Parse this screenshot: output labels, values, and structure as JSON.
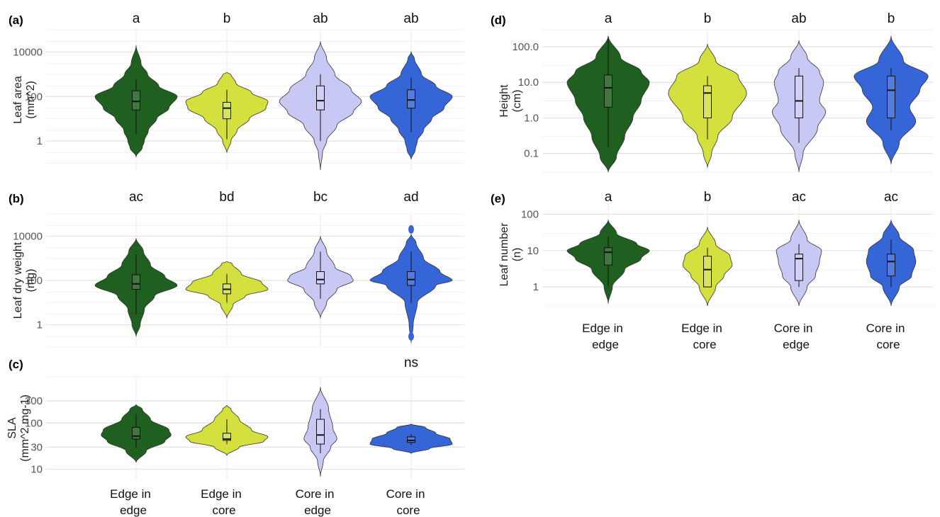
{
  "colors": {
    "Edge in edge": "#1f5f1f",
    "Edge in core": "#d4e03e",
    "Core in edge": "#c8c8f4",
    "Core in core": "#3565d6"
  },
  "chart_data": [
    {
      "panel": "(a)",
      "type": "violin",
      "scale": "log",
      "ylim": [
        0.05,
        100000
      ],
      "ylabel": [
        "Leaf area",
        "(mm^2)"
      ],
      "yticks": [
        1,
        100,
        10000
      ],
      "yticklabels": [
        "1",
        "100",
        "10000"
      ],
      "categories": [
        "Edge in edge",
        "Edge in core",
        "Core in edge",
        "Core in core"
      ],
      "xticklabels": [],
      "sig": [
        "a",
        "b",
        "ab",
        "ab"
      ],
      "groups": [
        {
          "min": 0.3,
          "q1": 25,
          "median": 60,
          "q3": 180,
          "max": 600,
          "whisker_lo": 2,
          "width": [
            [
              0.2,
              0
            ],
            [
              0.5,
              0.15
            ],
            [
              1,
              0.2
            ],
            [
              3,
              0.3
            ],
            [
              10,
              0.5
            ],
            [
              30,
              0.8
            ],
            [
              100,
              1
            ],
            [
              300,
              0.55
            ],
            [
              1000,
              0.28
            ],
            [
              3000,
              0.12
            ],
            [
              20000,
              0
            ]
          ]
        },
        {
          "min": 0.3,
          "q1": 10,
          "median": 30,
          "q3": 55,
          "max": 200,
          "whisker_lo": 1.2,
          "width": [
            [
              0.3,
              0
            ],
            [
              1,
              0.1
            ],
            [
              3,
              0.25
            ],
            [
              10,
              0.55
            ],
            [
              30,
              0.95
            ],
            [
              60,
              1
            ],
            [
              150,
              0.6
            ],
            [
              400,
              0.22
            ],
            [
              1000,
              0.1
            ],
            [
              1200,
              0
            ]
          ]
        },
        {
          "min": 0.05,
          "q1": 25,
          "median": 65,
          "q3": 300,
          "max": 1000,
          "whisker_lo": 1,
          "width": [
            [
              0.05,
              0
            ],
            [
              0.3,
              0.05
            ],
            [
              1,
              0.15
            ],
            [
              5,
              0.4
            ],
            [
              20,
              0.8
            ],
            [
              60,
              1
            ],
            [
              200,
              0.75
            ],
            [
              1000,
              0.35
            ],
            [
              5000,
              0.15
            ],
            [
              30000,
              0
            ]
          ]
        },
        {
          "min": 0.2,
          "q1": 30,
          "median": 70,
          "q3": 200,
          "max": 700,
          "whisker_lo": 2.5,
          "width": [
            [
              0.15,
              0
            ],
            [
              0.4,
              0.1
            ],
            [
              1,
              0.15
            ],
            [
              3,
              0.3
            ],
            [
              10,
              0.5
            ],
            [
              30,
              0.8
            ],
            [
              100,
              1
            ],
            [
              300,
              0.6
            ],
            [
              1000,
              0.25
            ],
            [
              5000,
              0.08
            ],
            [
              10000,
              0
            ]
          ]
        }
      ],
      "extra_points": []
    },
    {
      "panel": "(b)",
      "type": "violin",
      "scale": "log",
      "ylim": [
        0.1,
        100000
      ],
      "ylabel": [
        "Leaf dry weight",
        "(mg)"
      ],
      "yticks": [
        1,
        100,
        10000
      ],
      "yticklabels": [
        "1",
        "100",
        "10000"
      ],
      "categories": [
        "Edge in edge",
        "Edge in core",
        "Core in edge",
        "Core in core"
      ],
      "xticklabels": [],
      "sig": [
        "ac",
        "bd",
        "bc",
        "ad"
      ],
      "groups": [
        {
          "min": 0.3,
          "q1": 40,
          "median": 70,
          "q3": 180,
          "max": 1500,
          "whisker_lo": 3,
          "width": [
            [
              0.3,
              0
            ],
            [
              1,
              0.1
            ],
            [
              5,
              0.2
            ],
            [
              20,
              0.45
            ],
            [
              60,
              1
            ],
            [
              150,
              0.7
            ],
            [
              500,
              0.35
            ],
            [
              2000,
              0.18
            ],
            [
              8000,
              0
            ]
          ]
        },
        {
          "min": 2,
          "q1": 25,
          "median": 40,
          "q3": 70,
          "max": 200,
          "whisker_lo": 10,
          "width": [
            [
              2,
              0
            ],
            [
              8,
              0.15
            ],
            [
              20,
              0.45
            ],
            [
              40,
              1
            ],
            [
              80,
              0.85
            ],
            [
              200,
              0.35
            ],
            [
              600,
              0.12
            ],
            [
              700,
              0
            ]
          ]
        },
        {
          "min": 2,
          "q1": 70,
          "median": 110,
          "q3": 250,
          "max": 2000,
          "whisker_lo": 15,
          "width": [
            [
              2,
              0
            ],
            [
              10,
              0.15
            ],
            [
              40,
              0.4
            ],
            [
              100,
              0.8
            ],
            [
              150,
              0.75
            ],
            [
              400,
              0.35
            ],
            [
              2000,
              0.15
            ],
            [
              10000,
              0
            ]
          ]
        },
        {
          "min": 0.1,
          "q1": 60,
          "median": 110,
          "q3": 250,
          "max": 2000,
          "whisker_lo": 10,
          "width": [
            [
              0.15,
              0
            ],
            [
              1,
              0.05
            ],
            [
              10,
              0.15
            ],
            [
              60,
              0.6
            ],
            [
              100,
              1
            ],
            [
              250,
              0.7
            ],
            [
              1000,
              0.3
            ],
            [
              5000,
              0.12
            ],
            [
              12000,
              0
            ]
          ]
        }
      ],
      "extra_points": [
        {
          "group": 3,
          "y": 20000
        },
        {
          "group": 3,
          "y": 0.3
        }
      ]
    },
    {
      "panel": "(c)",
      "type": "violin",
      "scale": "log",
      "ylim": [
        6,
        1000
      ],
      "ylabel": [
        "SLA",
        "(mm^2 mg-1)"
      ],
      "yticks": [
        10,
        30,
        100,
        300
      ],
      "yticklabels": [
        "10",
        "30",
        "100",
        "300"
      ],
      "categories": [
        "Edge in edge",
        "Edge in core",
        "Core in edge",
        "Core in core"
      ],
      "xticklabels": [
        "Edge in|edge",
        "Edge in|core",
        "Core in|edge",
        "Core in|core"
      ],
      "sig": [
        "",
        "",
        "",
        "ns"
      ],
      "groups": [
        {
          "min": 14,
          "q1": 45,
          "median": 52,
          "q3": 80,
          "max": 150,
          "whisker_lo": 28,
          "width": [
            [
              14,
              0
            ],
            [
              25,
              0.25
            ],
            [
              40,
              0.7
            ],
            [
              55,
              0.85
            ],
            [
              70,
              0.8
            ],
            [
              120,
              0.35
            ],
            [
              200,
              0.15
            ],
            [
              250,
              0
            ]
          ]
        },
        {
          "min": 20,
          "q1": 42,
          "median": 45,
          "q3": 60,
          "max": 120,
          "whisker_lo": 35,
          "width": [
            [
              20,
              0
            ],
            [
              30,
              0.3
            ],
            [
              40,
              0.9
            ],
            [
              50,
              1
            ],
            [
              70,
              0.6
            ],
            [
              120,
              0.3
            ],
            [
              200,
              0.1
            ],
            [
              240,
              0
            ]
          ]
        },
        {
          "min": 7,
          "q1": 35,
          "median": 55,
          "q3": 120,
          "max": 200,
          "whisker_lo": 22,
          "width": [
            [
              7,
              0
            ],
            [
              15,
              0.07
            ],
            [
              30,
              0.25
            ],
            [
              45,
              0.4
            ],
            [
              80,
              0.3
            ],
            [
              200,
              0.2
            ],
            [
              600,
              0
            ]
          ]
        },
        {
          "min": 22,
          "q1": 38,
          "median": 42,
          "q3": 50,
          "max": 58,
          "whisker_lo": 33,
          "width": [
            [
              22,
              0
            ],
            [
              28,
              0.45
            ],
            [
              35,
              1
            ],
            [
              45,
              0.95
            ],
            [
              60,
              0.6
            ],
            [
              80,
              0.35
            ],
            [
              95,
              0
            ]
          ]
        }
      ],
      "extra_points": []
    },
    {
      "panel": "(d)",
      "type": "violin",
      "scale": "log",
      "ylim": [
        0.03,
        300
      ],
      "ylabel": [
        "Height",
        "(cm)"
      ],
      "yticks": [
        0.1,
        1,
        10,
        100
      ],
      "yticklabels": [
        "0.1",
        "1.0",
        "10.0",
        "100.0"
      ],
      "categories": [
        "Edge in edge",
        "Edge in core",
        "Core in edge",
        "Core in core"
      ],
      "xticklabels": [],
      "sig": [
        "a",
        "b",
        "ab",
        "b"
      ],
      "groups": [
        {
          "min": 0.03,
          "q1": 2,
          "median": 7,
          "q3": 16,
          "max": 200,
          "whisker_lo": 0.15,
          "width": [
            [
              0.03,
              0
            ],
            [
              0.08,
              0.2
            ],
            [
              0.3,
              0.4
            ],
            [
              1,
              0.6
            ],
            [
              3,
              0.8
            ],
            [
              10,
              1
            ],
            [
              20,
              0.8
            ],
            [
              50,
              0.3
            ],
            [
              200,
              0
            ]
          ]
        },
        {
          "min": 0.05,
          "q1": 1,
          "median": 5,
          "q3": 8,
          "max": 15,
          "whisker_lo": 0.25,
          "width": [
            [
              0.04,
              0
            ],
            [
              0.1,
              0.1
            ],
            [
              0.3,
              0.25
            ],
            [
              1,
              0.6
            ],
            [
              5,
              0.95
            ],
            [
              15,
              0.75
            ],
            [
              40,
              0.2
            ],
            [
              120,
              0
            ]
          ]
        },
        {
          "min": 0.03,
          "q1": 1,
          "median": 3,
          "q3": 15,
          "max": 25,
          "whisker_lo": 0.2,
          "width": [
            [
              0.03,
              0
            ],
            [
              0.1,
              0.1
            ],
            [
              0.5,
              0.45
            ],
            [
              1.5,
              0.65
            ],
            [
              3,
              0.5
            ],
            [
              10,
              0.6
            ],
            [
              20,
              0.5
            ],
            [
              50,
              0.2
            ],
            [
              150,
              0
            ]
          ]
        },
        {
          "min": 0.05,
          "q1": 1,
          "median": 6,
          "q3": 15,
          "max": 25,
          "whisker_lo": 0.45,
          "width": [
            [
              0.05,
              0
            ],
            [
              0.2,
              0.2
            ],
            [
              0.8,
              0.6
            ],
            [
              2,
              0.45
            ],
            [
              6,
              0.7
            ],
            [
              15,
              0.9
            ],
            [
              40,
              0.3
            ],
            [
              200,
              0
            ]
          ]
        }
      ],
      "extra_points": []
    },
    {
      "panel": "(e)",
      "type": "violin",
      "scale": "log",
      "ylim": [
        0.3,
        200
      ],
      "ylabel": [
        "Leaf number",
        "(n)"
      ],
      "yticks": [
        1,
        10,
        100
      ],
      "yticklabels": [
        "1",
        "10",
        "100"
      ],
      "categories": [
        "Edge in edge",
        "Edge in core",
        "Core in edge",
        "Core in core"
      ],
      "xticklabels": [
        "Edge in|edge",
        "Edge in|core",
        "Core in|edge",
        "Core in|core"
      ],
      "sig": [
        "a",
        "b",
        "ac",
        "ac"
      ],
      "groups": [
        {
          "min": 0.35,
          "q1": 4,
          "median": 9,
          "q3": 12,
          "max": 25,
          "whisker_lo": 1,
          "width": [
            [
              0.35,
              0
            ],
            [
              1,
              0.1
            ],
            [
              3,
              0.4
            ],
            [
              6,
              0.8
            ],
            [
              10,
              1
            ],
            [
              15,
              0.7
            ],
            [
              30,
              0.2
            ],
            [
              70,
              0
            ]
          ]
        },
        {
          "min": 0.3,
          "q1": 1,
          "median": 3,
          "q3": 7,
          "max": 12,
          "whisker_lo": 1,
          "width": [
            [
              0.3,
              0
            ],
            [
              1,
              0.2
            ],
            [
              2,
              0.4
            ],
            [
              4,
              0.6
            ],
            [
              7,
              0.55
            ],
            [
              15,
              0.2
            ],
            [
              45,
              0
            ]
          ]
        },
        {
          "min": 0.3,
          "q1": 1.5,
          "median": 6,
          "q3": 8,
          "max": 15,
          "whisker_lo": 1,
          "width": [
            [
              0.3,
              0
            ],
            [
              1,
              0.2
            ],
            [
              2,
              0.4
            ],
            [
              5,
              0.5
            ],
            [
              10,
              0.55
            ],
            [
              20,
              0.2
            ],
            [
              70,
              0
            ]
          ]
        },
        {
          "min": 0.3,
          "q1": 2,
          "median": 5,
          "q3": 8,
          "max": 20,
          "whisker_lo": 1,
          "width": [
            [
              0.3,
              0
            ],
            [
              1,
              0.2
            ],
            [
              2,
              0.5
            ],
            [
              5,
              0.6
            ],
            [
              10,
              0.55
            ],
            [
              25,
              0.2
            ],
            [
              70,
              0
            ]
          ]
        }
      ],
      "extra_points": []
    }
  ]
}
